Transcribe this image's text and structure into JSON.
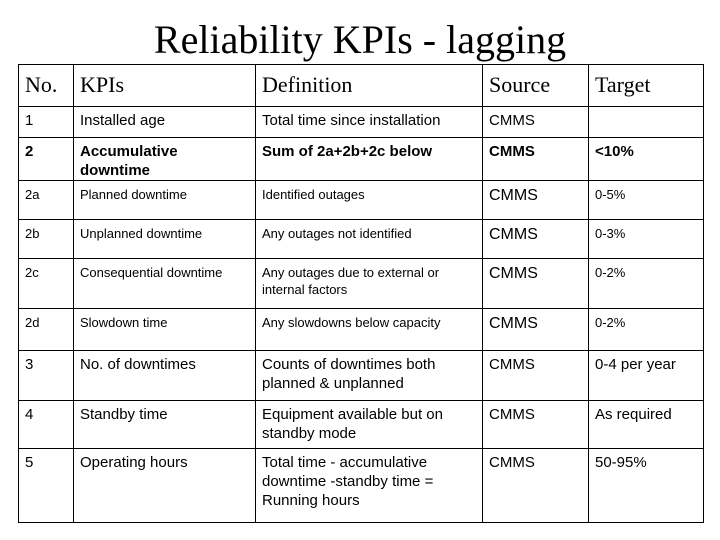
{
  "title": "Reliability KPIs - lagging",
  "table": {
    "header": [
      "No.",
      "KPIs",
      "Definition",
      "Source",
      "Target"
    ],
    "rows": [
      [
        "1",
        "Installed age",
        "Total time since installation",
        "CMMS"
      ],
      [
        "2",
        "Accumulative downtime",
        "Sum of 2a+2b+2c below",
        "CMMS",
        "<10%"
      ],
      [
        "2a",
        "Planned downtime",
        "Identified outages",
        "CMMS",
        "0-5%"
      ],
      [
        "2b",
        "Unplanned downtime",
        "Any outages not identified",
        "CMMS",
        "0-3%"
      ],
      [
        "2c",
        "Consequential downtime",
        "Any outages due to external or internal factors",
        "CMMS",
        "0-2%"
      ],
      [
        "2d",
        "Slowdown time",
        "Any slowdowns below capacity",
        "CMMS",
        "0-2%"
      ],
      [
        "3",
        "No. of downtimes",
        "Counts of downtimes both planned & unplanned",
        "CMMS",
        "0-4 per year"
      ],
      [
        "4",
        "Standby time",
        "Equipment available but on standby mode",
        "CMMS",
        "As required"
      ],
      [
        "5",
        "Operating hours",
        "Total time - accumulative downtime -standby time = Running hours",
        "CMMS",
        "50-95%"
      ]
    ]
  }
}
